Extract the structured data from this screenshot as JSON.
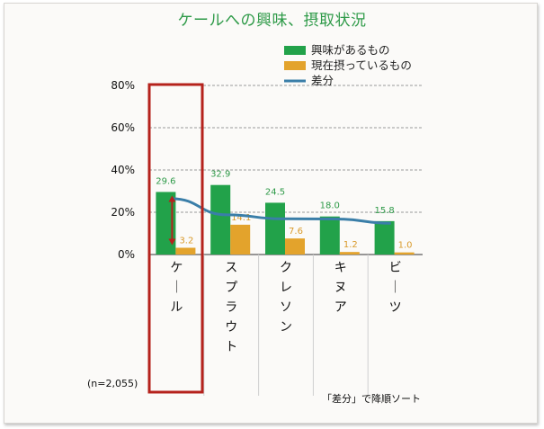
{
  "chart_data": {
    "type": "bar",
    "title": "ケールへの興味、摂取状況",
    "categories": [
      "ケール",
      "スプラウト",
      "クレソン",
      "キヌア",
      "ビーツ"
    ],
    "series": [
      {
        "name": "興味があるもの",
        "type": "bar",
        "color": "#22a24a",
        "values": [
          29.6,
          32.9,
          24.5,
          18.0,
          15.8
        ]
      },
      {
        "name": "現在摂っているもの",
        "type": "bar",
        "color": "#e3a32c",
        "values": [
          3.2,
          14.1,
          7.6,
          1.2,
          1.0
        ]
      },
      {
        "name": "差分",
        "type": "line",
        "color": "#3a7ea8",
        "values": [
          26.4,
          18.8,
          16.9,
          16.8,
          14.8
        ]
      }
    ],
    "value_labels": {
      "series1": [
        "29.6",
        "32.9",
        "24.5",
        "18.0",
        "15.8"
      ],
      "series2": [
        "3.2",
        "14.1",
        "7.6",
        "1.2",
        "1.0"
      ]
    },
    "yticks": [
      "80%",
      "60%",
      "40%",
      "20%",
      "0%"
    ],
    "ylim": [
      0,
      80
    ],
    "grid": true,
    "legend": "top-right",
    "n_label": "(n=2,055)",
    "sort_note": "「差分」で降順ソート",
    "highlight_color": "#b5221c"
  }
}
